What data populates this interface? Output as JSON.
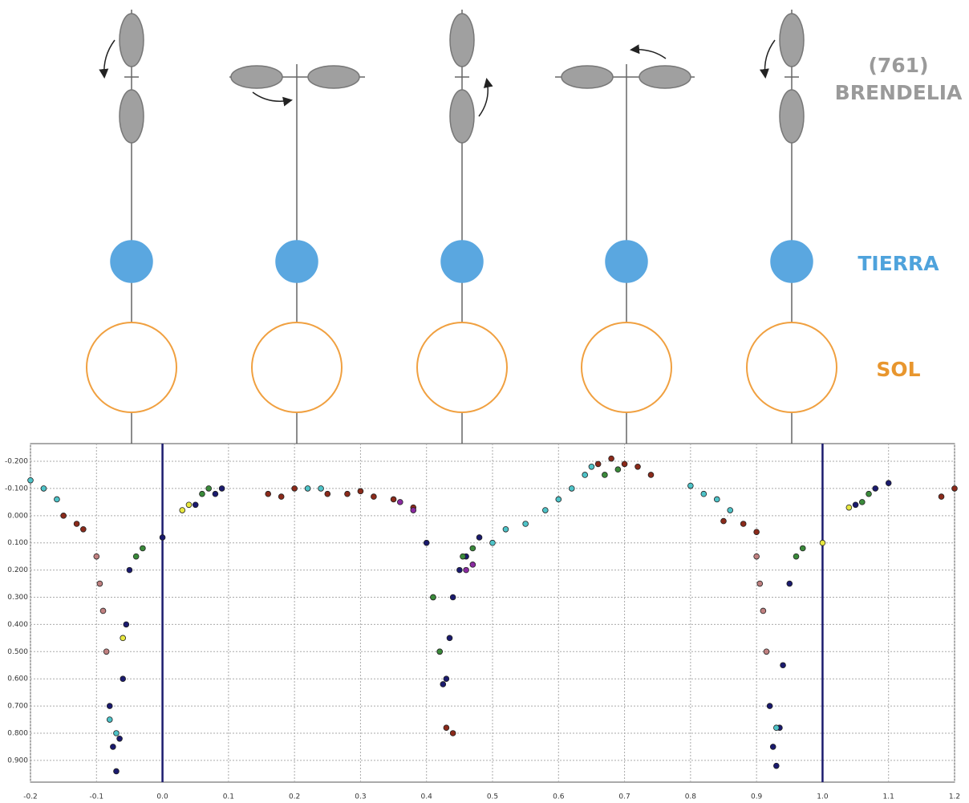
{
  "diagram": {
    "asteroid_label": [
      "(761)",
      "BRENDELIA"
    ],
    "earth_label": "TIERRA",
    "sun_label": "SOL"
  },
  "chart_data": {
    "type": "scatter",
    "xlim": [
      -0.2,
      1.2
    ],
    "ylim": [
      -0.265,
      0.98
    ],
    "y_inverted": true,
    "grid": true,
    "xticks": [
      -0.2,
      -0.1,
      {
        "value": 0,
        "label": "0.0"
      },
      0.1,
      0.2,
      0.3,
      0.4,
      0.5,
      0.6,
      0.7,
      0.8,
      0.9,
      {
        "value": 1,
        "label": "1.0"
      },
      1.1,
      1.2
    ],
    "yticks": [
      {
        "value": -0.2,
        "label": "-0.200"
      },
      {
        "value": -0.1,
        "label": "-0.100"
      },
      {
        "value": 0,
        "label": "0.000"
      },
      {
        "value": 0.1,
        "label": "0.100"
      },
      {
        "value": 0.2,
        "label": "0.200"
      },
      {
        "value": 0.3,
        "label": "0.300"
      },
      {
        "value": 0.4,
        "label": "0.400"
      },
      {
        "value": 0.5,
        "label": "0.500"
      },
      {
        "value": 0.6,
        "label": "0.600"
      },
      {
        "value": 0.7,
        "label": "0.700"
      },
      {
        "value": 0.8,
        "label": "0.800"
      },
      {
        "value": 0.9,
        "label": "0.900"
      }
    ],
    "vlines": [
      0,
      1
    ],
    "vline_color": "#1c1c6e",
    "series": [
      {
        "color": "#1a1a6e",
        "x": [
          -0.08,
          -0.075,
          -0.07,
          -0.065,
          -0.06,
          -0.055,
          -0.05,
          0.0,
          0.05,
          0.08,
          0.09,
          0.4,
          0.41,
          0.42,
          0.425,
          0.43,
          0.435,
          0.44,
          0.45,
          0.46,
          0.48,
          0.92,
          0.925,
          0.93,
          0.935,
          0.94,
          0.95,
          1.05,
          1.08,
          1.1
        ],
        "values": [
          0.7,
          0.85,
          0.94,
          0.82,
          0.6,
          0.4,
          0.2,
          0.08,
          -0.04,
          -0.08,
          -0.1,
          0.1,
          0.3,
          0.5,
          0.62,
          0.6,
          0.45,
          0.3,
          0.2,
          0.15,
          0.08,
          0.7,
          0.85,
          0.92,
          0.78,
          0.55,
          0.25,
          -0.04,
          -0.1,
          -0.12
        ]
      },
      {
        "color": "#8b2a1a",
        "x": [
          -0.15,
          -0.13,
          -0.12,
          0.16,
          0.18,
          0.2,
          0.25,
          0.28,
          0.3,
          0.32,
          0.35,
          0.38,
          0.43,
          0.44,
          0.66,
          0.68,
          0.7,
          0.72,
          0.74,
          0.85,
          0.88,
          0.9,
          1.18,
          1.2
        ],
        "values": [
          0.0,
          0.03,
          0.05,
          -0.08,
          -0.07,
          -0.1,
          -0.08,
          -0.08,
          -0.09,
          -0.07,
          -0.06,
          -0.03,
          0.78,
          0.8,
          -0.19,
          -0.21,
          -0.19,
          -0.18,
          -0.15,
          0.02,
          0.03,
          0.06,
          -0.07,
          -0.1
        ]
      },
      {
        "color": "#4ec3c8",
        "x": [
          -0.2,
          -0.18,
          -0.16,
          -0.08,
          -0.07,
          0.22,
          0.24,
          0.5,
          0.52,
          0.55,
          0.58,
          0.6,
          0.62,
          0.64,
          0.65,
          0.8,
          0.82,
          0.84,
          0.86,
          0.93
        ],
        "values": [
          -0.13,
          -0.1,
          -0.06,
          0.75,
          0.8,
          -0.1,
          -0.1,
          0.1,
          0.05,
          0.03,
          -0.02,
          -0.06,
          -0.1,
          -0.15,
          -0.18,
          -0.11,
          -0.08,
          -0.06,
          -0.02,
          0.78
        ]
      },
      {
        "color": "#3a8a3a",
        "x": [
          -0.04,
          -0.03,
          0.06,
          0.07,
          0.41,
          0.42,
          0.455,
          0.47,
          0.67,
          0.69,
          0.96,
          0.97,
          1.06,
          1.07
        ],
        "values": [
          0.15,
          0.12,
          -0.08,
          -0.1,
          0.3,
          0.5,
          0.15,
          0.12,
          -0.15,
          -0.17,
          0.15,
          0.12,
          -0.05,
          -0.08
        ]
      },
      {
        "color": "#c08080",
        "x": [
          -0.1,
          -0.095,
          -0.09,
          -0.085,
          0.9,
          0.905,
          0.91,
          0.915
        ],
        "values": [
          0.15,
          0.25,
          0.35,
          0.5,
          0.15,
          0.25,
          0.35,
          0.5
        ]
      },
      {
        "color": "#8a2aa0",
        "x": [
          0.36,
          0.38,
          0.46,
          0.47
        ],
        "values": [
          -0.05,
          -0.02,
          0.2,
          0.18
        ]
      },
      {
        "color": "#e8e840",
        "x": [
          0.03,
          0.04,
          -0.06,
          1.0,
          1.04
        ],
        "values": [
          -0.02,
          -0.04,
          0.45,
          0.1,
          -0.03
        ]
      }
    ]
  }
}
